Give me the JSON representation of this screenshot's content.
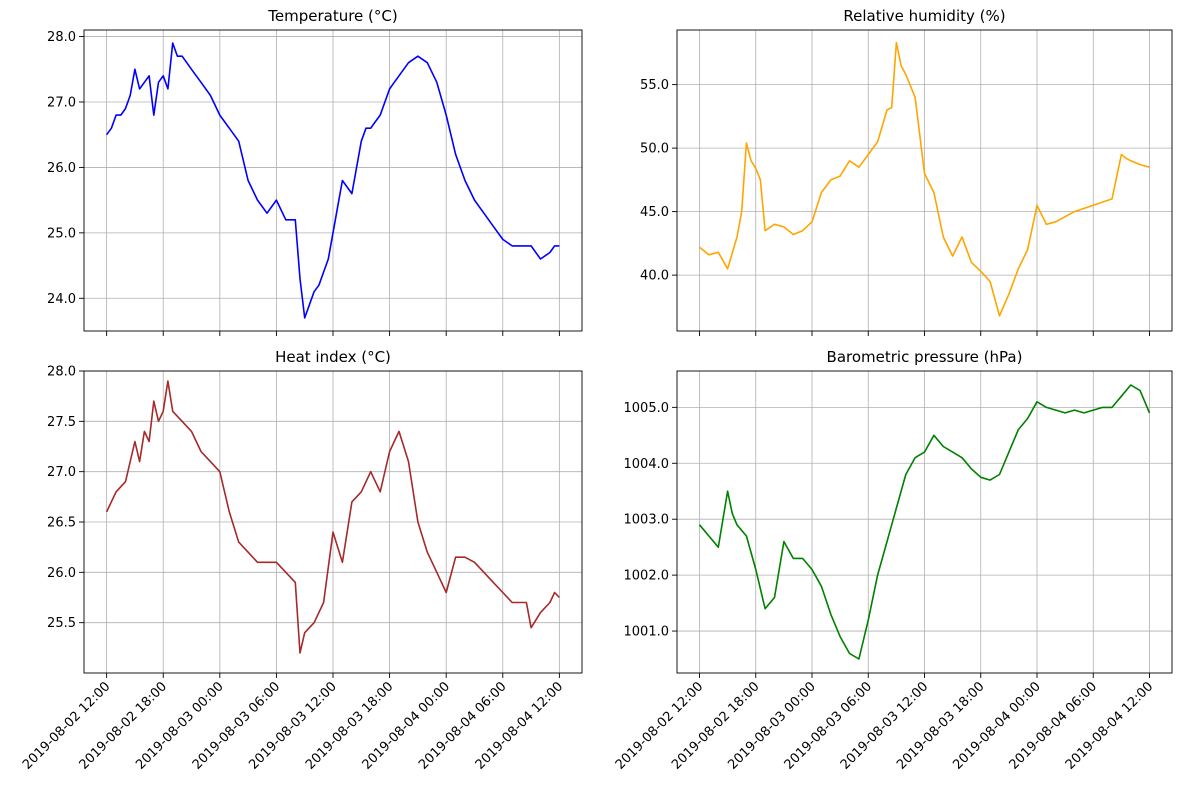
{
  "chart_data": [
    {
      "type": "line",
      "title": "Temperature (°C)",
      "color": "#0000ff",
      "x_range": [
        "2019-08-02 12:00",
        "2019-08-04 12:00"
      ],
      "ylim": [
        23.5,
        28.1
      ],
      "yticks": [
        24.0,
        25.0,
        26.0,
        27.0,
        28.0
      ],
      "ytick_labels": [
        "24.0",
        "25.0",
        "26.0",
        "27.0",
        "28.0"
      ],
      "xtick_labels": [],
      "grid": true,
      "series": [
        {
          "x": [
            "2019-08-02 12:00",
            "2019-08-02 12:30",
            "2019-08-02 13:00",
            "2019-08-02 13:30",
            "2019-08-02 14:00",
            "2019-08-02 14:30",
            "2019-08-02 15:00",
            "2019-08-02 15:30",
            "2019-08-02 16:00",
            "2019-08-02 16:30",
            "2019-08-02 17:00",
            "2019-08-02 17:30",
            "2019-08-02 18:00",
            "2019-08-02 18:30",
            "2019-08-02 19:00",
            "2019-08-02 19:30",
            "2019-08-02 20:00",
            "2019-08-02 20:30",
            "2019-08-02 21:00",
            "2019-08-02 22:00",
            "2019-08-02 23:00",
            "2019-08-03 00:00",
            "2019-08-03 01:00",
            "2019-08-03 02:00",
            "2019-08-03 03:00",
            "2019-08-03 04:00",
            "2019-08-03 05:00",
            "2019-08-03 06:00",
            "2019-08-03 07:00",
            "2019-08-03 08:00",
            "2019-08-03 08:30",
            "2019-08-03 09:00",
            "2019-08-03 09:30",
            "2019-08-03 10:00",
            "2019-08-03 10:30",
            "2019-08-03 11:00",
            "2019-08-03 11:30",
            "2019-08-03 12:00",
            "2019-08-03 13:00",
            "2019-08-03 14:00",
            "2019-08-03 15:00",
            "2019-08-03 15:30",
            "2019-08-03 16:00",
            "2019-08-03 16:30",
            "2019-08-03 17:00",
            "2019-08-03 17:30",
            "2019-08-03 18:00",
            "2019-08-03 18:30",
            "2019-08-03 19:00",
            "2019-08-03 20:00",
            "2019-08-03 21:00",
            "2019-08-03 22:00",
            "2019-08-03 23:00",
            "2019-08-04 00:00",
            "2019-08-04 01:00",
            "2019-08-04 02:00",
            "2019-08-04 03:00",
            "2019-08-04 04:00",
            "2019-08-04 05:00",
            "2019-08-04 06:00",
            "2019-08-04 07:00",
            "2019-08-04 08:00",
            "2019-08-04 09:00",
            "2019-08-04 10:00",
            "2019-08-04 11:00",
            "2019-08-04 11:30",
            "2019-08-04 12:00"
          ],
          "values": [
            26.5,
            26.6,
            26.8,
            26.8,
            26.9,
            27.1,
            27.5,
            27.2,
            27.3,
            27.4,
            26.8,
            27.3,
            27.4,
            27.2,
            27.9,
            27.7,
            27.7,
            27.6,
            27.5,
            27.3,
            27.1,
            26.8,
            26.6,
            26.4,
            25.8,
            25.5,
            25.3,
            25.5,
            25.2,
            25.2,
            24.3,
            23.7,
            23.9,
            24.1,
            24.2,
            24.4,
            24.6,
            25.0,
            25.8,
            25.6,
            26.4,
            26.6,
            26.6,
            26.7,
            26.8,
            27.0,
            27.2,
            27.3,
            27.4,
            27.6,
            27.7,
            27.6,
            27.3,
            26.8,
            26.2,
            25.8,
            25.5,
            25.3,
            25.1,
            24.9,
            24.8,
            24.8,
            24.8,
            24.6,
            24.7,
            24.8,
            24.8
          ]
        }
      ]
    },
    {
      "type": "line",
      "title": "Relative humidity (%)",
      "color": "#ffa500",
      "x_range": [
        "2019-08-02 12:00",
        "2019-08-04 12:00"
      ],
      "ylim": [
        35.6,
        59.3
      ],
      "yticks": [
        40.0,
        45.0,
        50.0,
        55.0
      ],
      "ytick_labels": [
        "40.0",
        "45.0",
        "50.0",
        "55.0"
      ],
      "xtick_labels": [],
      "grid": true,
      "series": [
        {
          "x": [
            "2019-08-02 12:00",
            "2019-08-02 13:00",
            "2019-08-02 14:00",
            "2019-08-02 15:00",
            "2019-08-02 16:00",
            "2019-08-02 16:30",
            "2019-08-02 17:00",
            "2019-08-02 17:30",
            "2019-08-02 18:00",
            "2019-08-02 18:30",
            "2019-08-02 19:00",
            "2019-08-02 20:00",
            "2019-08-02 21:00",
            "2019-08-02 22:00",
            "2019-08-02 23:00",
            "2019-08-03 00:00",
            "2019-08-03 01:00",
            "2019-08-03 02:00",
            "2019-08-03 03:00",
            "2019-08-03 04:00",
            "2019-08-03 05:00",
            "2019-08-03 06:00",
            "2019-08-03 07:00",
            "2019-08-03 08:00",
            "2019-08-03 08:30",
            "2019-08-03 09:00",
            "2019-08-03 09:30",
            "2019-08-03 10:00",
            "2019-08-03 11:00",
            "2019-08-03 12:00",
            "2019-08-03 13:00",
            "2019-08-03 14:00",
            "2019-08-03 15:00",
            "2019-08-03 16:00",
            "2019-08-03 17:00",
            "2019-08-03 18:00",
            "2019-08-03 19:00",
            "2019-08-03 20:00",
            "2019-08-03 21:00",
            "2019-08-03 22:00",
            "2019-08-03 23:00",
            "2019-08-04 00:00",
            "2019-08-04 01:00",
            "2019-08-04 02:00",
            "2019-08-04 04:00",
            "2019-08-04 06:00",
            "2019-08-04 08:00",
            "2019-08-04 09:00",
            "2019-08-04 09:30",
            "2019-08-04 10:00",
            "2019-08-04 11:00",
            "2019-08-04 12:00"
          ],
          "values": [
            42.2,
            41.6,
            41.8,
            40.5,
            43.0,
            45.0,
            50.4,
            49.0,
            48.4,
            47.5,
            43.5,
            44.0,
            43.8,
            43.2,
            43.5,
            44.2,
            46.5,
            47.5,
            47.8,
            49.0,
            48.5,
            49.5,
            50.5,
            53.0,
            53.2,
            58.3,
            56.5,
            55.8,
            54.0,
            48.0,
            46.5,
            43.0,
            41.5,
            43.0,
            41.0,
            40.3,
            39.5,
            36.8,
            38.5,
            40.5,
            42.0,
            45.5,
            44.0,
            44.2,
            45.0,
            45.5,
            46.0,
            49.5,
            49.2,
            49.0,
            48.7,
            48.5
          ]
        }
      ]
    },
    {
      "type": "line",
      "title": "Heat index (°C)",
      "color": "#a52a2a",
      "x_range": [
        "2019-08-02 12:00",
        "2019-08-04 12:00"
      ],
      "ylim": [
        25.0,
        28.0
      ],
      "yticks": [
        25.5,
        26.0,
        26.5,
        27.0,
        27.5,
        28.0
      ],
      "ytick_labels": [
        "25.5",
        "26.0",
        "26.5",
        "27.0",
        "27.5",
        "28.0"
      ],
      "xtick_labels": [
        "2019-08-02 12:00",
        "2019-08-02 18:00",
        "2019-08-03 00:00",
        "2019-08-03 06:00",
        "2019-08-03 12:00",
        "2019-08-03 18:00",
        "2019-08-04 00:00",
        "2019-08-04 06:00",
        "2019-08-04 12:00"
      ],
      "grid": true,
      "series": [
        {
          "x": [
            "2019-08-02 12:00",
            "2019-08-02 13:00",
            "2019-08-02 14:00",
            "2019-08-02 15:00",
            "2019-08-02 15:30",
            "2019-08-02 16:00",
            "2019-08-02 16:30",
            "2019-08-02 17:00",
            "2019-08-02 17:30",
            "2019-08-02 18:00",
            "2019-08-02 18:30",
            "2019-08-02 19:00",
            "2019-08-02 20:00",
            "2019-08-02 21:00",
            "2019-08-02 22:00",
            "2019-08-02 23:00",
            "2019-08-03 00:00",
            "2019-08-03 01:00",
            "2019-08-03 02:00",
            "2019-08-03 03:00",
            "2019-08-03 04:00",
            "2019-08-03 05:00",
            "2019-08-03 06:00",
            "2019-08-03 07:00",
            "2019-08-03 08:00",
            "2019-08-03 08:30",
            "2019-08-03 09:00",
            "2019-08-03 10:00",
            "2019-08-03 11:00",
            "2019-08-03 12:00",
            "2019-08-03 13:00",
            "2019-08-03 14:00",
            "2019-08-03 15:00",
            "2019-08-03 16:00",
            "2019-08-03 17:00",
            "2019-08-03 18:00",
            "2019-08-03 19:00",
            "2019-08-03 20:00",
            "2019-08-03 21:00",
            "2019-08-03 22:00",
            "2019-08-03 23:00",
            "2019-08-04 00:00",
            "2019-08-04 01:00",
            "2019-08-04 02:00",
            "2019-08-04 03:00",
            "2019-08-04 04:00",
            "2019-08-04 05:00",
            "2019-08-04 06:00",
            "2019-08-04 07:00",
            "2019-08-04 08:00",
            "2019-08-04 08:30",
            "2019-08-04 09:00",
            "2019-08-04 10:00",
            "2019-08-04 11:00",
            "2019-08-04 11:30",
            "2019-08-04 12:00"
          ],
          "values": [
            26.6,
            26.8,
            26.9,
            27.3,
            27.1,
            27.4,
            27.3,
            27.7,
            27.5,
            27.6,
            27.9,
            27.6,
            27.5,
            27.4,
            27.2,
            27.1,
            27.0,
            26.6,
            26.3,
            26.2,
            26.1,
            26.1,
            26.1,
            26.0,
            25.9,
            25.2,
            25.4,
            25.5,
            25.7,
            26.4,
            26.1,
            26.7,
            26.8,
            27.0,
            26.8,
            27.2,
            27.4,
            27.1,
            26.5,
            26.2,
            26.0,
            25.8,
            26.15,
            26.15,
            26.1,
            26.0,
            25.9,
            25.8,
            25.7,
            25.7,
            25.7,
            25.45,
            25.6,
            25.7,
            25.8,
            25.75
          ]
        }
      ]
    },
    {
      "type": "line",
      "title": "Barometric pressure (hPa)",
      "color": "#008000",
      "x_range": [
        "2019-08-02 12:00",
        "2019-08-04 12:00"
      ],
      "ylim": [
        1000.25,
        1005.65
      ],
      "yticks": [
        1001.0,
        1002.0,
        1003.0,
        1004.0,
        1005.0
      ],
      "ytick_labels": [
        "1001.0",
        "1002.0",
        "1003.0",
        "1004.0",
        "1005.0"
      ],
      "xtick_labels": [
        "2019-08-02 12:00",
        "2019-08-02 18:00",
        "2019-08-03 00:00",
        "2019-08-03 06:00",
        "2019-08-03 12:00",
        "2019-08-03 18:00",
        "2019-08-04 00:00",
        "2019-08-04 06:00",
        "2019-08-04 12:00"
      ],
      "grid": true,
      "series": [
        {
          "x": [
            "2019-08-02 12:00",
            "2019-08-02 13:00",
            "2019-08-02 14:00",
            "2019-08-02 15:00",
            "2019-08-02 15:30",
            "2019-08-02 16:00",
            "2019-08-02 17:00",
            "2019-08-02 18:00",
            "2019-08-02 19:00",
            "2019-08-02 20:00",
            "2019-08-02 21:00",
            "2019-08-02 22:00",
            "2019-08-02 23:00",
            "2019-08-03 00:00",
            "2019-08-03 01:00",
            "2019-08-03 02:00",
            "2019-08-03 03:00",
            "2019-08-03 04:00",
            "2019-08-03 05:00",
            "2019-08-03 06:00",
            "2019-08-03 07:00",
            "2019-08-03 08:00",
            "2019-08-03 09:00",
            "2019-08-03 10:00",
            "2019-08-03 11:00",
            "2019-08-03 12:00",
            "2019-08-03 13:00",
            "2019-08-03 14:00",
            "2019-08-03 15:00",
            "2019-08-03 16:00",
            "2019-08-03 17:00",
            "2019-08-03 18:00",
            "2019-08-03 19:00",
            "2019-08-03 20:00",
            "2019-08-03 21:00",
            "2019-08-03 22:00",
            "2019-08-03 23:00",
            "2019-08-04 00:00",
            "2019-08-04 01:00",
            "2019-08-04 02:00",
            "2019-08-04 03:00",
            "2019-08-04 04:00",
            "2019-08-04 05:00",
            "2019-08-04 06:00",
            "2019-08-04 07:00",
            "2019-08-04 08:00",
            "2019-08-04 09:00",
            "2019-08-04 10:00",
            "2019-08-04 11:00",
            "2019-08-04 12:00"
          ],
          "values": [
            1002.9,
            1002.7,
            1002.5,
            1003.5,
            1003.1,
            1002.9,
            1002.7,
            1002.1,
            1001.4,
            1001.6,
            1002.6,
            1002.3,
            1002.3,
            1002.1,
            1001.8,
            1001.3,
            1000.9,
            1000.6,
            1000.5,
            1001.2,
            1002.0,
            1002.6,
            1003.2,
            1003.8,
            1004.1,
            1004.2,
            1004.5,
            1004.3,
            1004.2,
            1004.1,
            1003.9,
            1003.75,
            1003.7,
            1003.8,
            1004.2,
            1004.6,
            1004.8,
            1005.1,
            1005.0,
            1004.95,
            1004.9,
            1004.95,
            1004.9,
            1004.95,
            1005.0,
            1005.0,
            1005.2,
            1005.4,
            1005.3,
            1004.9
          ]
        }
      ]
    }
  ]
}
